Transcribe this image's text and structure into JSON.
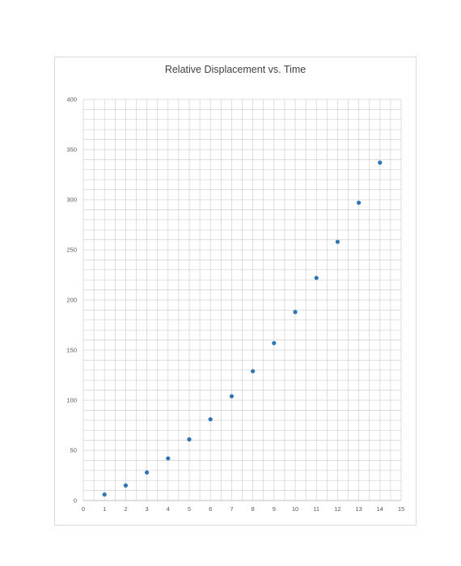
{
  "chart_data": {
    "type": "scatter",
    "title": "Relative Displacement vs. Time",
    "xlabel": "",
    "ylabel": "",
    "xlim": [
      0,
      15
    ],
    "ylim": [
      0,
      400
    ],
    "x_ticks": [
      0,
      1,
      2,
      3,
      4,
      5,
      6,
      7,
      8,
      9,
      10,
      11,
      12,
      13,
      14,
      15
    ],
    "y_ticks": [
      0,
      50,
      100,
      150,
      200,
      250,
      300,
      350,
      400
    ],
    "x_minor_step": 0.5,
    "y_minor_step": 10,
    "grid": true,
    "legend": "none",
    "series": [
      {
        "color": "#2e75b6",
        "x": [
          1,
          2,
          3,
          4,
          5,
          6,
          7,
          8,
          9,
          10,
          11,
          12,
          13,
          14
        ],
        "y": [
          6,
          15,
          28,
          42,
          61,
          81,
          104,
          129,
          157,
          188,
          222,
          258,
          297,
          337
        ]
      }
    ]
  }
}
